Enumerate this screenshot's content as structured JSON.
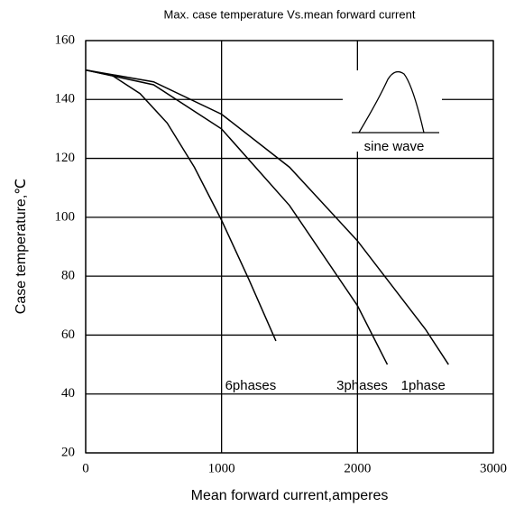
{
  "chart_data": {
    "type": "line",
    "title": "Max. case temperature Vs.mean forward current",
    "xlabel": "Mean forward current,amperes",
    "ylabel": "Case temperature,℃",
    "annotation": "sine wave",
    "xlim": [
      0,
      3000
    ],
    "xticks": [
      0,
      1000,
      2000,
      3000
    ],
    "ylim": [
      20,
      160
    ],
    "yticks": [
      20,
      40,
      60,
      80,
      100,
      120,
      140,
      160
    ],
    "grid": true,
    "series": [
      {
        "name": "6phases",
        "color": "#000000",
        "x": [
          0,
          200,
          400,
          600,
          800,
          1000,
          1200,
          1400
        ],
        "values": [
          150,
          148,
          142,
          132,
          117,
          99,
          79,
          58
        ]
      },
      {
        "name": "3phases",
        "color": "#000000",
        "x": [
          0,
          500,
          1000,
          1500,
          2000,
          2220
        ],
        "values": [
          150,
          145,
          130,
          104,
          70,
          50
        ]
      },
      {
        "name": "1phase",
        "color": "#000000",
        "x": [
          0,
          500,
          1000,
          1500,
          2000,
          2500,
          2670
        ],
        "values": [
          150,
          146,
          135,
          117,
          92,
          62,
          50
        ]
      }
    ]
  }
}
